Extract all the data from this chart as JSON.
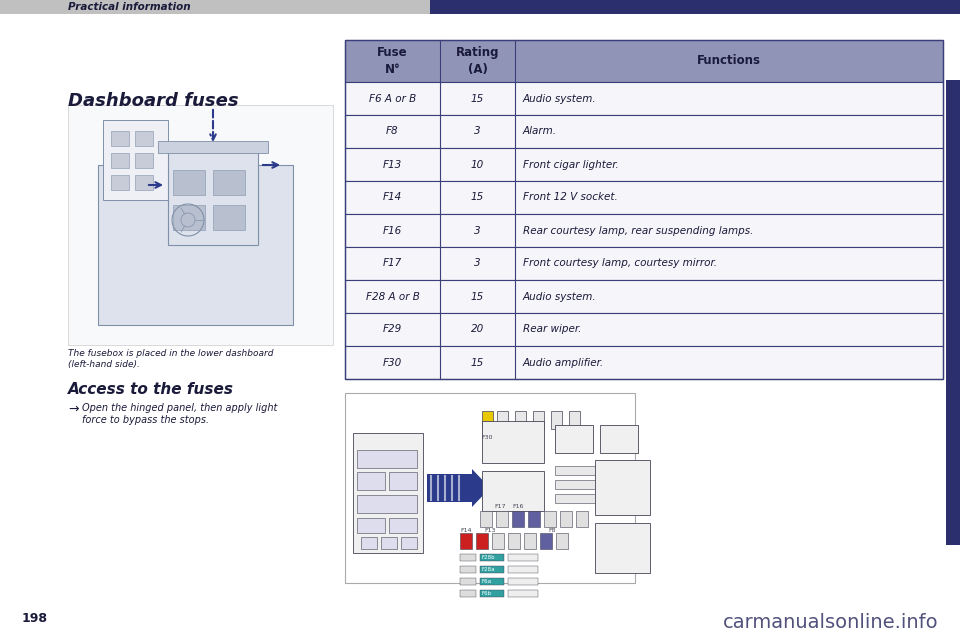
{
  "page_num": "198",
  "header_text": "Practical information",
  "section_title": "Dashboard fuses",
  "access_title": "Access to the fuses",
  "access_bullet_line1": "Open the hinged panel, then apply light",
  "access_bullet_line2": "force to bypass the stops.",
  "caption_line1": "The fusebox is placed in the lower dashboard",
  "caption_line2": "(left-hand side).",
  "table_col1_header": "Fuse\nN°",
  "table_col2_header": "Rating\n(A)",
  "table_col3_header": "Functions",
  "table_data": [
    [
      "F6 A or B",
      "15",
      "Audio system."
    ],
    [
      "F8",
      "3",
      "Alarm."
    ],
    [
      "F13",
      "10",
      "Front cigar lighter."
    ],
    [
      "F14",
      "15",
      "Front 12 V socket."
    ],
    [
      "F16",
      "3",
      "Rear courtesy lamp, rear suspending lamps."
    ],
    [
      "F17",
      "3",
      "Front courtesy lamp, courtesy mirror."
    ],
    [
      "F28 A or B",
      "15",
      "Audio system."
    ],
    [
      "F29",
      "20",
      "Rear wiper."
    ],
    [
      "F30",
      "15",
      "Audio amplifier."
    ]
  ],
  "bg_color": "#ffffff",
  "header_bar_gray": "#c0c0c0",
  "header_bar_blue": "#2b2f6e",
  "header_text_color": "#1a1a3a",
  "section_title_color": "#1a1a3a",
  "table_header_bg": "#9095b8",
  "table_header_text": "#1a1a3a",
  "table_row_bg_alt": "#e8e9f0",
  "table_row_bg": "#f0f0f5",
  "table_border": "#3a3f7a",
  "table_text_color": "#1a1a3a",
  "body_text_color": "#1a1a3a",
  "sketch_color": "#8090a8",
  "arrow_color": "#2b3a8a",
  "watermark": "carmanualsonline.info",
  "watermark_color": "#333366"
}
